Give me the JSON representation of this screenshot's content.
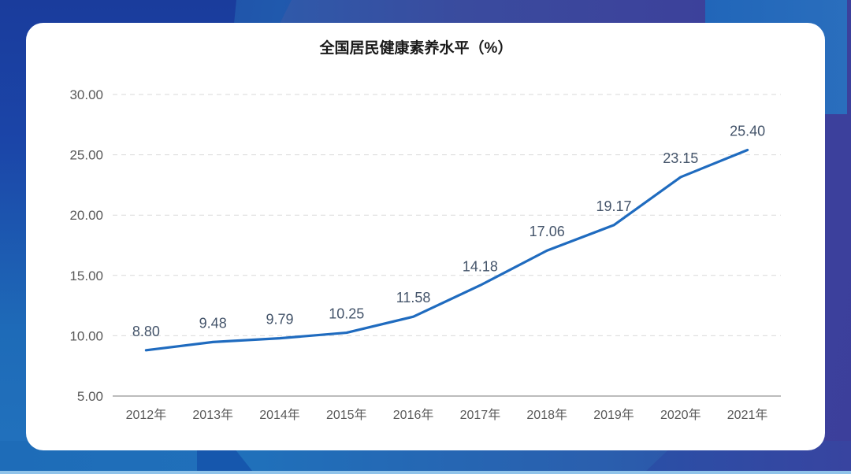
{
  "chart_data": {
    "type": "line",
    "title": "全国居民健康素养水平（%）",
    "xlabel": "",
    "ylabel": "",
    "categories": [
      "2012年",
      "2013年",
      "2014年",
      "2015年",
      "2016年",
      "2017年",
      "2018年",
      "2019年",
      "2020年",
      "2021年"
    ],
    "series": [
      {
        "name": "全国居民健康素养水平",
        "values": [
          8.8,
          9.48,
          9.79,
          10.25,
          11.58,
          14.18,
          17.06,
          19.17,
          23.15,
          25.4
        ],
        "labels": [
          "8.80",
          "9.48",
          "9.79",
          "10.25",
          "11.58",
          "14.18",
          "17.06",
          "19.17",
          "23.15",
          "25.40"
        ],
        "color": "#1f6bbf"
      }
    ],
    "yticks": [
      "5.00",
      "10.00",
      "15.00",
      "20.00",
      "25.00",
      "30.00"
    ],
    "ytick_values": [
      5,
      10,
      15,
      20,
      25,
      30
    ],
    "ylim": [
      5,
      30
    ],
    "grid": true,
    "legend": "none"
  },
  "colors": {
    "line": "#1f6bbf",
    "grid": "#d9d9d9",
    "axis": "#a6a6a6",
    "label": "#44546a",
    "tick": "#595959"
  }
}
